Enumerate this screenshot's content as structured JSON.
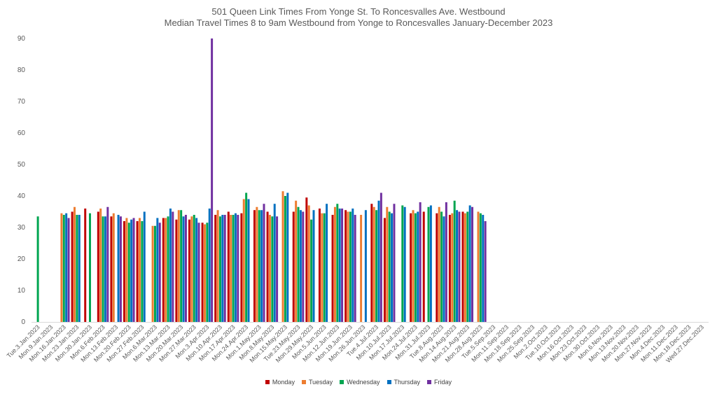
{
  "chart_data": {
    "type": "bar",
    "title": "501 Queen Link Times From Yonge St. To Roncesvalles Ave. Westbound",
    "subtitle": "Median Travel Times 8 to 9am Westbound from Yonge to Roncesvalles January-December 2023",
    "xlabel": "",
    "ylabel": "",
    "ylim": [
      0,
      90
    ],
    "yticks": [
      0,
      10,
      20,
      30,
      40,
      50,
      60,
      70,
      80,
      90
    ],
    "grid": false,
    "legend_position": "bottom",
    "categories": [
      "Tue.3.Jan.2023",
      "Mon.9.Jan.2023",
      "Mon.16.Jan.2023",
      "Mon.23.Jan.2023",
      "Mon.30.Jan.2023",
      "Mon.6.Feb.2023",
      "Mon.13.Feb.2023",
      "Mon.20.Feb.2023",
      "Mon.27.Feb.2023",
      "Mon.6.Mar.2023",
      "Mon.13.Mar.2023",
      "Mon.20.Mar.2023",
      "Mon.27.Mar.2023",
      "Mon.3.Apr.2023",
      "Mon.10.Apr.2023",
      "Mon.17.Apr.2023",
      "Mon.24.Apr.2023",
      "Mon.1.May.2023",
      "Mon.8.May.2023",
      "Mon.15.May.2023",
      "Tue.23.May.2023",
      "Mon.29.May.2023",
      "Mon.5.Jun.2023",
      "Mon.12.Jun.2023",
      "Mon.19.Jun.2023",
      "Mon.26.Jun.2023",
      "Tue.4.Jul.2023",
      "Mon.10.Jul.2023",
      "Mon.17.Jul.2023",
      "Mon.24.Jul.2023",
      "Mon.31.Jul.2023",
      "Tue.8.Aug.2023",
      "Mon.14.Aug.2023",
      "Mon.21.Aug.2023",
      "Mon.28.Aug.2023",
      "Tue.5.Sep.2023",
      "Mon.11.Sep.2023",
      "Mon.18.Sep.2023",
      "Mon.25.Sep.2023",
      "Mon.2.Oct.2023",
      "Tue.10.Oct.2023",
      "Mon.16.Oct.2023",
      "Mon.23.Oct.2023",
      "Mon.30.Oct.2023",
      "Mon.6.Nov.2023",
      "Mon.13.Nov.2023",
      "Mon.20.Nov.2023",
      "Mon.27.Nov.2023",
      "Mon.4.Dec.2023",
      "Mon.11.Dec.2023",
      "Mon.18.Dec.2023",
      "Wed.27.Dec.2023"
    ],
    "series": [
      {
        "name": "Monday",
        "color": "#c00000",
        "values": [
          null,
          null,
          null,
          35,
          36,
          35,
          33.5,
          32,
          32,
          null,
          33,
          32.5,
          32.5,
          31.5,
          34,
          35,
          34.5,
          35.5,
          35,
          null,
          35,
          39.5,
          36,
          34,
          35.5,
          null,
          37.5,
          33,
          null,
          34.5,
          35,
          34.5,
          34,
          35,
          null,
          null,
          null,
          null,
          null,
          null,
          null,
          null,
          null,
          null,
          null,
          null,
          null,
          null,
          null,
          null,
          null,
          null
        ]
      },
      {
        "name": "Tuesday",
        "color": "#ed7d31",
        "values": [
          null,
          null,
          34.5,
          36.5,
          null,
          36,
          34.5,
          33,
          33,
          30.5,
          33,
          35.5,
          33.5,
          31,
          35.5,
          34,
          39,
          36.5,
          34,
          41.5,
          38.5,
          37,
          34.5,
          36.5,
          35,
          34,
          36.5,
          36.5,
          null,
          35.5,
          null,
          36.5,
          34.5,
          34.5,
          35,
          null,
          null,
          null,
          null,
          null,
          null,
          null,
          null,
          null,
          null,
          null,
          null,
          null,
          null,
          null,
          null,
          null
        ]
      },
      {
        "name": "Wednesday",
        "color": "#00a550",
        "values": [
          33.5,
          null,
          34,
          34,
          34.5,
          33.5,
          null,
          31.5,
          32,
          30.5,
          33.5,
          35.5,
          34,
          31.5,
          33.5,
          34,
          41,
          35.5,
          33.5,
          40,
          36.5,
          32.5,
          34.5,
          37.5,
          35,
          null,
          35.5,
          35,
          37,
          34.5,
          36.5,
          35,
          38.5,
          35,
          34.5,
          null,
          null,
          null,
          null,
          null,
          null,
          null,
          null,
          null,
          null,
          null,
          null,
          null,
          null,
          null,
          null,
          null
        ]
      },
      {
        "name": "Thursday",
        "color": "#0070c0",
        "values": [
          null,
          null,
          34.5,
          34,
          null,
          33.5,
          34,
          32.5,
          35,
          33,
          36,
          33.5,
          33,
          36,
          34,
          34.5,
          39,
          35.5,
          37.5,
          41,
          35.5,
          35.5,
          37.5,
          36,
          36,
          35.5,
          38.5,
          34.5,
          36.5,
          35,
          37,
          33.5,
          35.5,
          37,
          34,
          null,
          null,
          null,
          null,
          null,
          null,
          null,
          null,
          null,
          null,
          null,
          null,
          null,
          null,
          null,
          null,
          null
        ]
      },
      {
        "name": "Friday",
        "color": "#7030a0",
        "values": [
          null,
          null,
          33,
          null,
          null,
          36.5,
          33.5,
          33,
          null,
          31.5,
          35,
          34,
          31.5,
          90,
          34,
          34,
          null,
          37.5,
          33.5,
          null,
          35,
          null,
          null,
          36,
          34,
          null,
          41,
          37.5,
          null,
          38,
          null,
          38,
          35,
          36.5,
          32,
          null,
          null,
          null,
          null,
          null,
          null,
          null,
          null,
          null,
          null,
          null,
          null,
          null,
          null,
          null,
          null,
          null
        ]
      }
    ]
  }
}
